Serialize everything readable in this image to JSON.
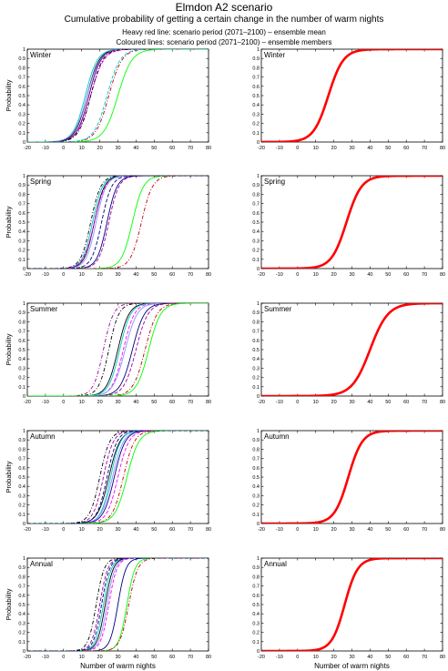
{
  "header": {
    "title": "Elmdon A2 scenario",
    "subtitle": "Cumulative probability of getting a certain change in the number of warm nights",
    "line1": "Heavy red line: scenario period (2071–2100) – ensemble mean",
    "line2": "Coloured lines: scenario period (2071–2100) – ensemble members"
  },
  "colors": {
    "ensemble_mean": "#ff0000",
    "members": [
      "#000000",
      "#000080",
      "#00c8c8",
      "#ff00ff",
      "#00ff00",
      "#c00000",
      "#9090ff",
      "#a000a0"
    ]
  },
  "chart_data": {
    "type": "line",
    "layout": "5x2 panel grid",
    "xlabel": "Number of warm nights",
    "ylabel": "Probability",
    "xlim": [
      -20,
      80
    ],
    "ylim": [
      0,
      1
    ],
    "xticks": [
      -20,
      -10,
      0,
      10,
      20,
      30,
      40,
      50,
      60,
      70,
      80
    ],
    "yticks": [
      0,
      0.1,
      0.2,
      0.3,
      0.4,
      0.5,
      0.6,
      0.7,
      0.8,
      0.9,
      1
    ],
    "ytick_labels": [
      "0",
      "0.1",
      "0.2",
      "0.3",
      "0.4",
      "0.5",
      "0.6",
      "0.7",
      "0.8",
      "0.9",
      "1"
    ],
    "seasons": [
      {
        "name": "Winter",
        "mean_curve": {
          "median": 17,
          "spread": 7.5
        },
        "member_curves": [
          {
            "median": 13,
            "spread": 6,
            "color": "#000000",
            "dash": ""
          },
          {
            "median": 14,
            "spread": 6,
            "color": "#000080",
            "dash": ""
          },
          {
            "median": 12,
            "spread": 6,
            "color": "#00c8c8",
            "dash": ""
          },
          {
            "median": 15,
            "spread": 6.5,
            "color": "#ff00ff",
            "dash": "4,2"
          },
          {
            "median": 13,
            "spread": 6.5,
            "color": "#9090ff",
            "dash": ""
          },
          {
            "median": 14,
            "spread": 6,
            "color": "#a000a0",
            "dash": "4,2"
          },
          {
            "median": 15,
            "spread": 6,
            "color": "#000000",
            "dash": "4,2,1,2"
          },
          {
            "median": 30,
            "spread": 7,
            "color": "#00ff00",
            "dash": ""
          },
          {
            "median": 25,
            "spread": 6.5,
            "color": "#c00000",
            "dash": "4,2,1,2"
          },
          {
            "median": 24,
            "spread": 6.5,
            "color": "#00c8c8",
            "dash": "4,2"
          }
        ]
      },
      {
        "name": "Spring",
        "mean_curve": {
          "median": 27,
          "spread": 7.5
        },
        "member_curves": [
          {
            "median": 17,
            "spread": 5,
            "color": "#000000",
            "dash": ""
          },
          {
            "median": 16,
            "spread": 5,
            "color": "#00c8c8",
            "dash": ""
          },
          {
            "median": 15,
            "spread": 5,
            "color": "#000000",
            "dash": "4,2,1,2"
          },
          {
            "median": 17,
            "spread": 5.5,
            "color": "#ff00ff",
            "dash": "4,2"
          },
          {
            "median": 18,
            "spread": 5,
            "color": "#9090ff",
            "dash": ""
          },
          {
            "median": 24,
            "spread": 5,
            "color": "#000080",
            "dash": ""
          },
          {
            "median": 25,
            "spread": 5,
            "color": "#a000a0",
            "dash": "4,2"
          },
          {
            "median": 38,
            "spread": 5.5,
            "color": "#00ff00",
            "dash": ""
          },
          {
            "median": 43,
            "spread": 5.5,
            "color": "#c00000",
            "dash": "4,2,1,2"
          },
          {
            "median": 21,
            "spread": 5,
            "color": "#000080",
            "dash": "4,2"
          }
        ]
      },
      {
        "name": "Summer",
        "mean_curve": {
          "median": 40,
          "spread": 9
        },
        "member_curves": [
          {
            "median": 22,
            "spread": 5,
            "color": "#a000a0",
            "dash": "4,2,1,2"
          },
          {
            "median": 25,
            "spread": 5,
            "color": "#000000",
            "dash": "4,2,1,2"
          },
          {
            "median": 30,
            "spread": 5.5,
            "color": "#000000",
            "dash": ""
          },
          {
            "median": 31,
            "spread": 5.5,
            "color": "#00c8c8",
            "dash": ""
          },
          {
            "median": 33,
            "spread": 5.5,
            "color": "#ff00ff",
            "dash": "4,2"
          },
          {
            "median": 34,
            "spread": 6,
            "color": "#9090ff",
            "dash": ""
          },
          {
            "median": 38,
            "spread": 6,
            "color": "#000080",
            "dash": ""
          },
          {
            "median": 40,
            "spread": 6,
            "color": "#a000a0",
            "dash": "4,2"
          },
          {
            "median": 45,
            "spread": 6,
            "color": "#c00000",
            "dash": "4,2,1,2"
          },
          {
            "median": 47,
            "spread": 6,
            "color": "#00ff00",
            "dash": ""
          }
        ]
      },
      {
        "name": "Autumn",
        "mean_curve": {
          "median": 28,
          "spread": 7
        },
        "member_curves": [
          {
            "median": 20,
            "spread": 5,
            "color": "#000000",
            "dash": "4,2,1,2"
          },
          {
            "median": 22,
            "spread": 5,
            "color": "#a000a0",
            "dash": "4,2"
          },
          {
            "median": 25,
            "spread": 5.5,
            "color": "#000000",
            "dash": ""
          },
          {
            "median": 26,
            "spread": 5,
            "color": "#00c8c8",
            "dash": ""
          },
          {
            "median": 27,
            "spread": 5.5,
            "color": "#9090ff",
            "dash": ""
          },
          {
            "median": 28,
            "spread": 5.5,
            "color": "#000080",
            "dash": ""
          },
          {
            "median": 30,
            "spread": 5.5,
            "color": "#ff00ff",
            "dash": "4,2"
          },
          {
            "median": 33,
            "spread": 5.5,
            "color": "#c00000",
            "dash": "4,2,1,2"
          },
          {
            "median": 35,
            "spread": 6,
            "color": "#00ff00",
            "dash": ""
          },
          {
            "median": 24,
            "spread": 5,
            "color": "#000080",
            "dash": "4,2"
          }
        ]
      },
      {
        "name": "Annual",
        "mean_curve": {
          "median": 26,
          "spread": 6.5
        },
        "member_curves": [
          {
            "median": 18,
            "spread": 4,
            "color": "#000000",
            "dash": "4,2,1,2"
          },
          {
            "median": 20,
            "spread": 4,
            "color": "#a000a0",
            "dash": "4,2"
          },
          {
            "median": 22,
            "spread": 4,
            "color": "#00c8c8",
            "dash": ""
          },
          {
            "median": 23,
            "spread": 4,
            "color": "#000000",
            "dash": ""
          },
          {
            "median": 24,
            "spread": 4,
            "color": "#9090ff",
            "dash": ""
          },
          {
            "median": 25,
            "spread": 4,
            "color": "#ff00ff",
            "dash": "4,2"
          },
          {
            "median": 30,
            "spread": 4,
            "color": "#000080",
            "dash": ""
          },
          {
            "median": 35,
            "spread": 4,
            "color": "#00ff00",
            "dash": ""
          },
          {
            "median": 36,
            "spread": 4.5,
            "color": "#c00000",
            "dash": "4,2,1,2"
          },
          {
            "median": 21,
            "spread": 4,
            "color": "#000080",
            "dash": "4,2"
          }
        ]
      }
    ]
  }
}
